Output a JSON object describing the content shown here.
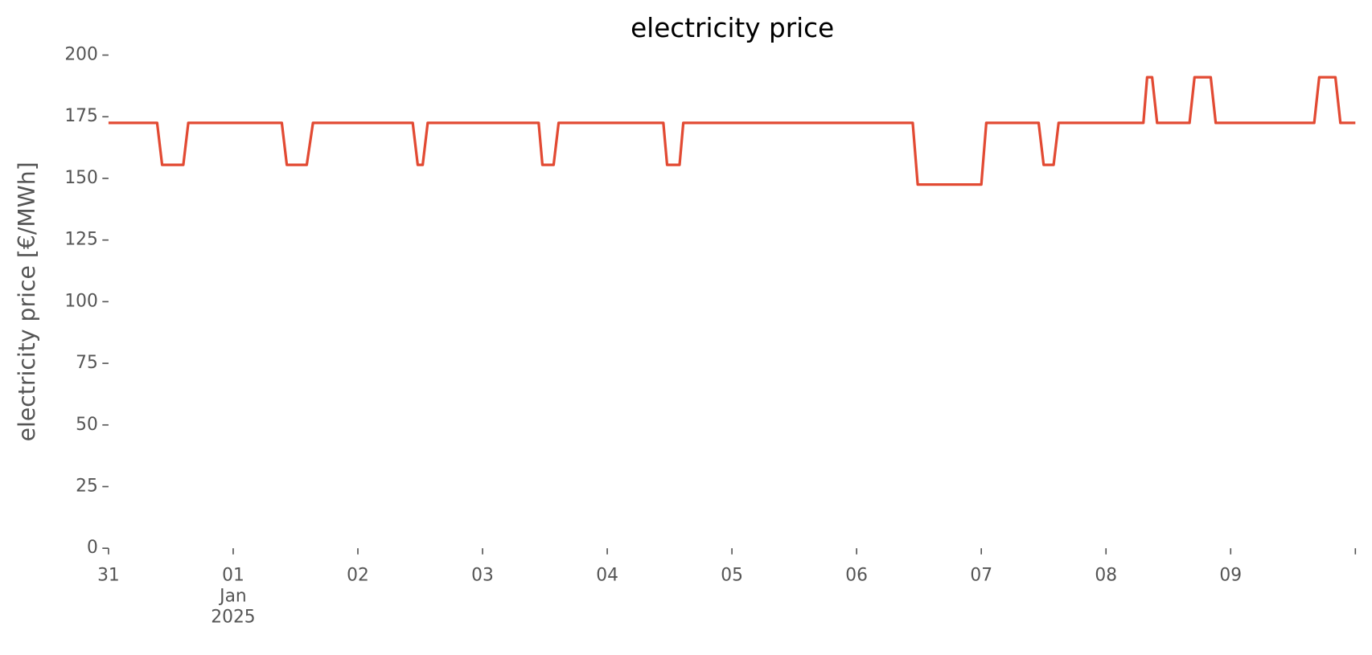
{
  "chart_data": {
    "type": "line",
    "title": "electricity price",
    "y_label": "electricity price [€/MWh]",
    "xlim": [
      0,
      10
    ],
    "xticks": [
      {
        "value": 0,
        "label": "31"
      },
      {
        "value": 1,
        "label": "01\nJan\n2025"
      },
      {
        "value": 2,
        "label": "02"
      },
      {
        "value": 3,
        "label": "03"
      },
      {
        "value": 4,
        "label": "04"
      },
      {
        "value": 5,
        "label": "05"
      },
      {
        "value": 6,
        "label": "06"
      },
      {
        "value": 7,
        "label": "07"
      },
      {
        "value": 8,
        "label": "08"
      },
      {
        "value": 9,
        "label": "09"
      },
      {
        "value": 10,
        "label": null
      }
    ],
    "ylim": [
      0,
      200
    ],
    "yticks": [
      0,
      25,
      50,
      75,
      100,
      125,
      150,
      175,
      200
    ],
    "grid": false,
    "series": [
      {
        "name": "electricity price",
        "color": "#e24a33",
        "x": [
          0,
          0.39,
          0.43,
          0.6,
          0.64,
          1.39,
          1.43,
          1.59,
          1.64,
          2.44,
          2.48,
          2.52,
          2.56,
          3.45,
          3.48,
          3.57,
          3.61,
          4.45,
          4.48,
          4.58,
          4.61,
          6.45,
          6.49,
          7.0,
          7.04,
          7.46,
          7.5,
          7.58,
          7.62,
          8.3,
          8.33,
          8.37,
          8.41,
          8.67,
          8.71,
          8.84,
          8.88,
          9.67,
          9.71,
          9.84,
          9.88,
          10
        ],
        "values": [
          172.5,
          172.5,
          155.5,
          155.5,
          172.5,
          172.5,
          155.5,
          155.5,
          172.5,
          172.5,
          155.5,
          155.5,
          172.5,
          172.5,
          155.5,
          155.5,
          172.5,
          172.5,
          155.5,
          155.5,
          172.5,
          172.5,
          147.5,
          147.5,
          172.5,
          172.5,
          155.5,
          155.5,
          172.5,
          172.5,
          191,
          191,
          172.5,
          172.5,
          191,
          191,
          172.5,
          172.5,
          191,
          191,
          172.5,
          172.5
        ]
      }
    ]
  }
}
